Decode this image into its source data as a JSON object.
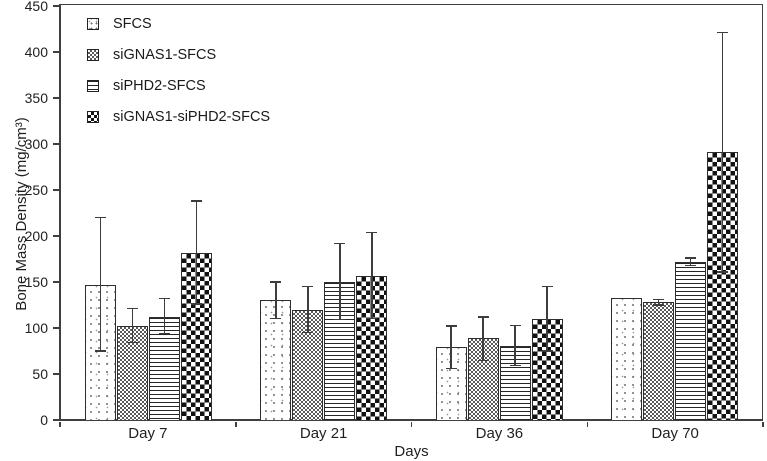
{
  "chart_data": {
    "type": "bar",
    "title": "",
    "xlabel": "Days",
    "ylabel": "Bone Mass Density (mg/cm³)",
    "ylim": [
      0,
      450
    ],
    "yticks": [
      0,
      50,
      100,
      150,
      200,
      250,
      300,
      350,
      400,
      450
    ],
    "grid": false,
    "legend_position": "top-left",
    "categories": [
      "Day 7",
      "Day 21",
      "Day 36",
      "Day 70"
    ],
    "series": [
      {
        "name": "SFCS",
        "pattern": "dots",
        "values": [
          147,
          130,
          79,
          133
        ],
        "err_up": [
          73,
          20,
          23,
          0
        ],
        "err_down": [
          72,
          20,
          23,
          0
        ]
      },
      {
        "name": "siGNAS1-SFCS",
        "pattern": "finecheck",
        "values": [
          102,
          120,
          89,
          128
        ],
        "err_up": [
          19,
          25,
          23,
          3
        ],
        "err_down": [
          18,
          25,
          24,
          3
        ]
      },
      {
        "name": "siPHD2-SFCS",
        "pattern": "hlines",
        "values": [
          112,
          150,
          80,
          172
        ],
        "err_up": [
          20,
          42,
          23,
          4
        ],
        "err_down": [
          18,
          41,
          21,
          4
        ]
      },
      {
        "name": "siGNAS1-siPHD2-SFCS",
        "pattern": "check",
        "values": [
          182,
          157,
          110,
          291
        ],
        "err_up": [
          56,
          47,
          35,
          130
        ],
        "err_down": [
          56,
          47,
          35,
          130
        ]
      }
    ],
    "colors": {
      "axis": "#3f3f3f",
      "bar_border": "#2e2e2e",
      "error_bar": "#3d3d3d",
      "text": "#1f1f1f",
      "background": "#ffffff"
    }
  }
}
